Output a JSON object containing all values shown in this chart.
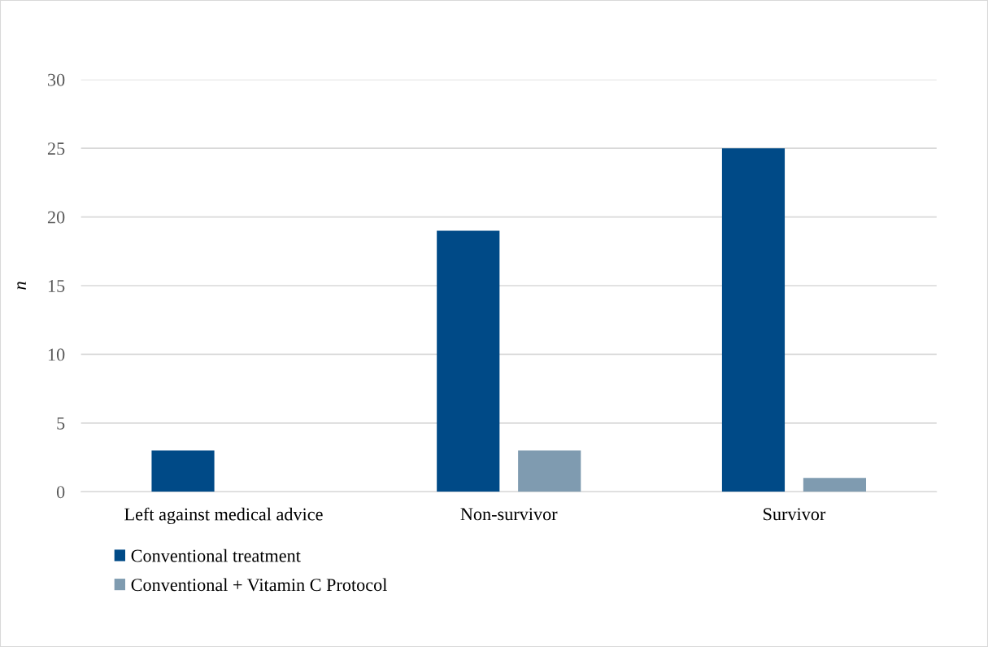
{
  "chart_data": {
    "type": "bar",
    "ylabel": "n",
    "categories": [
      "Left against medical advice",
      "Non-survivor",
      "Survivor"
    ],
    "series": [
      {
        "name": "Conventional treatment",
        "color": "#004a87",
        "values": [
          3,
          19,
          25
        ]
      },
      {
        "name": "Conventional + Vitamin C Protocol",
        "color": "#7f9bb0",
        "values": [
          0,
          3,
          1
        ]
      }
    ],
    "ylim": [
      0,
      30
    ],
    "yticks": [
      0,
      5,
      10,
      15,
      20,
      25,
      30
    ],
    "grid": "y",
    "legend": "bottom left"
  }
}
